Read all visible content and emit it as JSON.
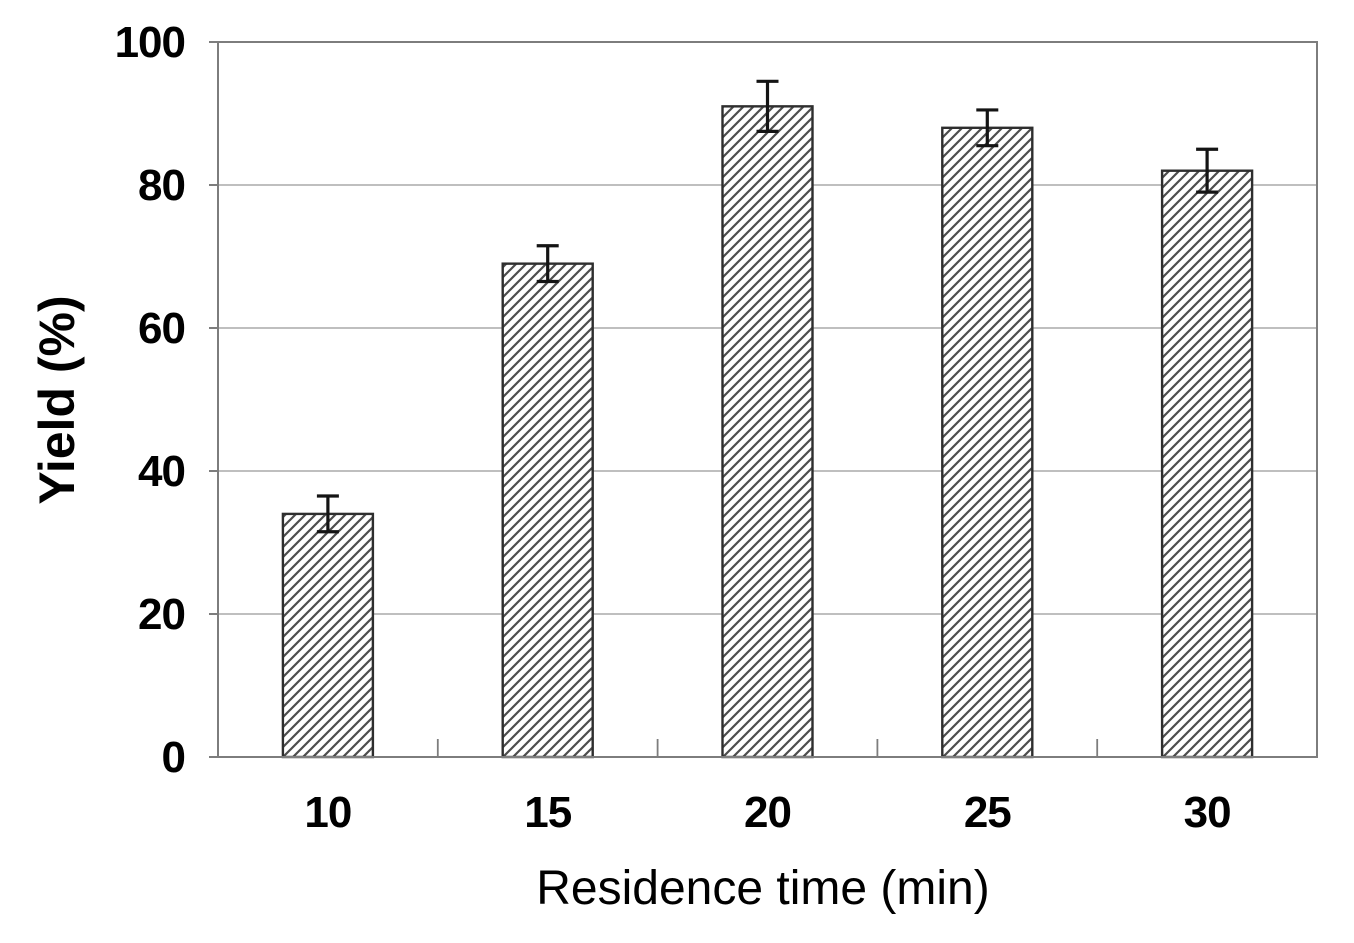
{
  "chart_data": {
    "type": "bar",
    "title": "",
    "xlabel": "Residence time (min)",
    "ylabel": "Yield (%)",
    "categories": [
      "10",
      "15",
      "20",
      "25",
      "30"
    ],
    "values": [
      34,
      69,
      91,
      88,
      82
    ],
    "error_bars": [
      2.5,
      2.5,
      3.5,
      2.5,
      3
    ],
    "ylim": [
      0,
      100
    ],
    "yticks": [
      0,
      20,
      40,
      60,
      80,
      100
    ],
    "ytick_labels": [
      "0",
      "20",
      "40",
      "60",
      "80",
      "100"
    ],
    "gridlines": [
      20,
      40,
      60,
      80
    ],
    "grid": true,
    "legend": "none",
    "style": {
      "bar_fill": "white-with-diagonal-hatch",
      "hatch_direction": "forward-slash",
      "hatch_color": "#4d4d4d",
      "bar_border_color": "#2e2e2e",
      "frame_color": "#7d7d7d",
      "gridline_color": "#aaaaaa",
      "error_bar_color": "#141414",
      "text_color": "#000000",
      "background": "#ffffff"
    }
  }
}
